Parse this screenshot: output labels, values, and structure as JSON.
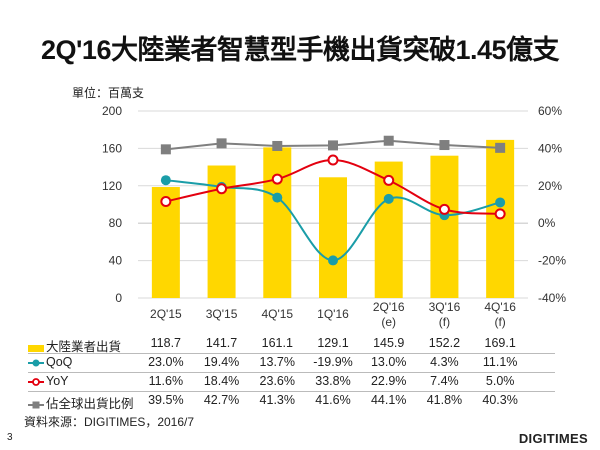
{
  "title": "2Q'16大陸業者智慧型手機出貨突破1.45億支",
  "unit_label": "單位：百萬支",
  "source": "資料來源：DIGITIMES，2016/7",
  "page_number": "3",
  "logo_text": "DIGITIMES",
  "colors": {
    "bar": "#FFD700",
    "qoq": "#1A9DA8",
    "yoy": "#E3000F",
    "share": "#7F7F7F",
    "grid": "#D9D9D9"
  },
  "chart_data": {
    "type": "bar",
    "title": "2Q'16大陸業者智慧型手機出貨突破1.45億支",
    "categories": [
      [
        "2Q'15"
      ],
      [
        "3Q'15"
      ],
      [
        "4Q'15"
      ],
      [
        "1Q'16"
      ],
      [
        "2Q'16",
        "(e)"
      ],
      [
        "3Q'16",
        "(f)"
      ],
      [
        "4Q'16",
        "(f)"
      ]
    ],
    "left_axis": {
      "ylim": [
        0,
        200
      ],
      "ticks": [
        "200",
        "160",
        "120",
        "80",
        "40",
        "0"
      ],
      "tick_values": [
        200,
        160,
        120,
        80,
        40,
        0
      ]
    },
    "right_axis": {
      "ylim": [
        -40,
        60
      ],
      "ticks": [
        "60%",
        "40%",
        "20%",
        "0%",
        "-20%",
        "-40%"
      ],
      "tick_values": [
        60,
        40,
        20,
        0,
        -20,
        -40
      ]
    },
    "grid": true,
    "series": [
      {
        "name": "大陸業者出貨",
        "type": "bar",
        "axis": "left",
        "values": [
          118.7,
          141.7,
          161.1,
          129.1,
          145.9,
          152.2,
          169.1
        ],
        "labels": [
          "118.7",
          "141.7",
          "161.1",
          "129.1",
          "145.9",
          "152.2",
          "169.1"
        ]
      },
      {
        "name": "QoQ",
        "type": "line",
        "axis": "right",
        "marker": "filled-circle",
        "values": [
          23.0,
          19.4,
          13.7,
          -19.9,
          13.0,
          4.3,
          11.1
        ],
        "labels": [
          "23.0%",
          "19.4%",
          "13.7%",
          "-19.9%",
          "13.0%",
          "4.3%",
          "11.1%"
        ]
      },
      {
        "name": "YoY",
        "type": "line",
        "axis": "right",
        "marker": "hollow-circle",
        "values": [
          11.6,
          18.4,
          23.6,
          33.8,
          22.9,
          7.4,
          5.0
        ],
        "labels": [
          "11.6%",
          "18.4%",
          "23.6%",
          "33.8%",
          "22.9%",
          "7.4%",
          "5.0%"
        ]
      },
      {
        "name": "佔全球出貨比例",
        "type": "line",
        "axis": "right",
        "marker": "square",
        "values": [
          39.5,
          42.7,
          41.3,
          41.6,
          44.1,
          41.8,
          40.3
        ],
        "labels": [
          "39.5%",
          "42.7%",
          "41.3%",
          "41.6%",
          "44.1%",
          "41.8%",
          "40.3%"
        ]
      }
    ],
    "legend_placement": "bottom-table"
  }
}
